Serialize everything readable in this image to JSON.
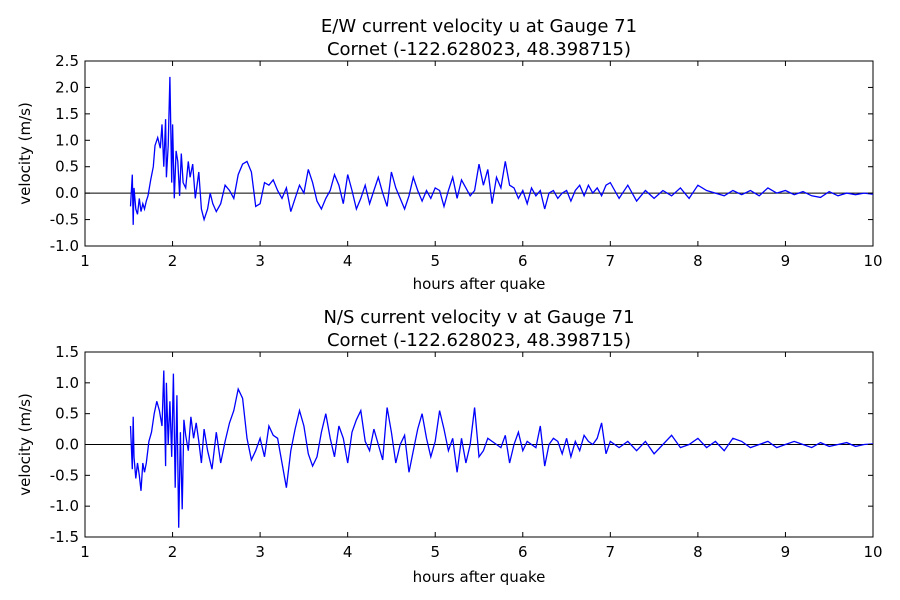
{
  "chart_data": [
    {
      "type": "line",
      "title": "E/W current velocity u at Gauge 71",
      "subtitle": "Cornet  (-122.628023, 48.398715)",
      "xlabel": "hours after quake",
      "ylabel": "velocity (m/s)",
      "xlim": [
        1,
        10
      ],
      "ylim": [
        -1.0,
        2.5
      ],
      "xticks": [
        "1",
        "2",
        "3",
        "4",
        "5",
        "6",
        "7",
        "8",
        "9",
        "10"
      ],
      "yticks": [
        "2.5",
        "2.0",
        "1.5",
        "1.0",
        "0.5",
        "0.0",
        "-0.5",
        "-1.0"
      ],
      "grid": false,
      "zero_line": true,
      "series_color": "#0000ff",
      "zero_line_color": "#000000",
      "series": [
        {
          "x": [
            1.52,
            1.54,
            1.55,
            1.56,
            1.58,
            1.6,
            1.62,
            1.64,
            1.66,
            1.68,
            1.7,
            1.72,
            1.75,
            1.78,
            1.8,
            1.83,
            1.86,
            1.88,
            1.9,
            1.92,
            1.93,
            1.95,
            1.97,
            1.99,
            2.0,
            2.02,
            2.04,
            2.06,
            2.08,
            2.1,
            2.12,
            2.15,
            2.18,
            2.2,
            2.23,
            2.26,
            2.3,
            2.33,
            2.36,
            2.4,
            2.43,
            2.46,
            2.5,
            2.55,
            2.6,
            2.65,
            2.7,
            2.75,
            2.8,
            2.85,
            2.9,
            2.95,
            3.0,
            3.05,
            3.1,
            3.15,
            3.2,
            3.25,
            3.3,
            3.35,
            3.4,
            3.45,
            3.5,
            3.55,
            3.6,
            3.65,
            3.7,
            3.75,
            3.8,
            3.85,
            3.9,
            3.95,
            4.0,
            4.05,
            4.1,
            4.15,
            4.2,
            4.25,
            4.3,
            4.35,
            4.4,
            4.45,
            4.5,
            4.55,
            4.6,
            4.65,
            4.7,
            4.75,
            4.8,
            4.85,
            4.9,
            4.95,
            5.0,
            5.05,
            5.1,
            5.15,
            5.2,
            5.25,
            5.3,
            5.35,
            5.4,
            5.45,
            5.5,
            5.55,
            5.6,
            5.65,
            5.7,
            5.75,
            5.8,
            5.85,
            5.9,
            5.95,
            6.0,
            6.05,
            6.1,
            6.15,
            6.2,
            6.25,
            6.3,
            6.35,
            6.4,
            6.45,
            6.5,
            6.55,
            6.6,
            6.65,
            6.7,
            6.75,
            6.8,
            6.85,
            6.9,
            6.95,
            7.0,
            7.1,
            7.2,
            7.3,
            7.4,
            7.5,
            7.6,
            7.7,
            7.8,
            7.9,
            8.0,
            8.1,
            8.2,
            8.3,
            8.4,
            8.5,
            8.6,
            8.7,
            8.8,
            8.9,
            9.0,
            9.1,
            9.2,
            9.3,
            9.4,
            9.5,
            9.6,
            9.7,
            9.8,
            9.9,
            10.0
          ],
          "y": [
            -0.25,
            0.35,
            -0.6,
            0.1,
            -0.3,
            -0.4,
            -0.1,
            -0.35,
            -0.2,
            -0.3,
            -0.15,
            -0.05,
            0.25,
            0.5,
            0.9,
            1.05,
            0.85,
            1.3,
            0.5,
            1.4,
            0.3,
            0.9,
            2.2,
            0.2,
            1.3,
            -0.1,
            0.8,
            0.6,
            -0.05,
            0.75,
            0.2,
            0.1,
            0.6,
            0.3,
            0.55,
            -0.1,
            0.4,
            -0.3,
            -0.5,
            -0.3,
            0.0,
            -0.2,
            -0.35,
            -0.2,
            0.15,
            0.05,
            -0.1,
            0.35,
            0.55,
            0.6,
            0.4,
            -0.25,
            -0.2,
            0.2,
            0.15,
            0.25,
            0.05,
            -0.1,
            0.1,
            -0.35,
            -0.1,
            0.15,
            0.0,
            0.45,
            0.2,
            -0.15,
            -0.3,
            -0.1,
            0.05,
            0.35,
            0.15,
            -0.2,
            0.35,
            0.05,
            -0.3,
            -0.1,
            0.15,
            -0.2,
            0.05,
            0.3,
            0.0,
            -0.25,
            0.4,
            0.1,
            -0.1,
            -0.3,
            -0.05,
            0.3,
            0.05,
            -0.15,
            0.05,
            -0.1,
            0.1,
            0.05,
            -0.25,
            0.05,
            0.3,
            -0.1,
            0.25,
            0.1,
            -0.05,
            0.05,
            0.55,
            0.15,
            0.45,
            -0.2,
            0.3,
            0.1,
            0.6,
            0.15,
            0.1,
            -0.1,
            0.05,
            -0.2,
            0.1,
            -0.05,
            0.05,
            -0.3,
            0.0,
            0.05,
            -0.1,
            0.0,
            0.05,
            -0.15,
            0.05,
            0.15,
            -0.05,
            0.15,
            0.0,
            0.1,
            -0.05,
            0.15,
            0.2,
            -0.1,
            0.15,
            -0.15,
            0.05,
            -0.1,
            0.05,
            -0.05,
            0.1,
            -0.1,
            0.15,
            0.05,
            0.0,
            -0.05,
            0.05,
            -0.03,
            0.05,
            -0.05,
            0.1,
            0.0,
            0.05,
            -0.03,
            0.03,
            -0.05,
            -0.08,
            0.03,
            -0.05,
            0.0,
            -0.03,
            0.0,
            -0.02
          ]
        }
      ]
    },
    {
      "type": "line",
      "title": "N/S current velocity v at Gauge 71",
      "subtitle": "Cornet  (-122.628023, 48.398715)",
      "xlabel": "hours after quake",
      "ylabel": "velocity (m/s)",
      "xlim": [
        1,
        10
      ],
      "ylim": [
        -1.5,
        1.5
      ],
      "xticks": [
        "1",
        "2",
        "3",
        "4",
        "5",
        "6",
        "7",
        "8",
        "9",
        "10"
      ],
      "yticks": [
        "1.5",
        "1.0",
        "0.5",
        "0.0",
        "-0.5",
        "-1.0",
        "-1.5"
      ],
      "grid": false,
      "zero_line": true,
      "series_color": "#0000ff",
      "zero_line_color": "#000000",
      "series": [
        {
          "x": [
            1.52,
            1.54,
            1.55,
            1.56,
            1.58,
            1.6,
            1.62,
            1.64,
            1.66,
            1.68,
            1.7,
            1.73,
            1.76,
            1.79,
            1.82,
            1.85,
            1.88,
            1.9,
            1.92,
            1.93,
            1.95,
            1.97,
            1.99,
            2.01,
            2.03,
            2.05,
            2.07,
            2.09,
            2.11,
            2.13,
            2.15,
            2.18,
            2.21,
            2.24,
            2.27,
            2.3,
            2.33,
            2.36,
            2.4,
            2.45,
            2.5,
            2.55,
            2.6,
            2.65,
            2.7,
            2.75,
            2.8,
            2.85,
            2.9,
            2.95,
            3.0,
            3.05,
            3.1,
            3.15,
            3.2,
            3.25,
            3.3,
            3.35,
            3.4,
            3.45,
            3.5,
            3.55,
            3.6,
            3.65,
            3.7,
            3.75,
            3.8,
            3.85,
            3.9,
            3.95,
            4.0,
            4.05,
            4.1,
            4.15,
            4.2,
            4.25,
            4.3,
            4.35,
            4.4,
            4.45,
            4.5,
            4.55,
            4.6,
            4.65,
            4.7,
            4.75,
            4.8,
            4.85,
            4.9,
            4.95,
            5.0,
            5.05,
            5.1,
            5.15,
            5.2,
            5.25,
            5.3,
            5.35,
            5.4,
            5.45,
            5.5,
            5.55,
            5.6,
            5.65,
            5.7,
            5.75,
            5.8,
            5.85,
            5.9,
            5.95,
            6.0,
            6.05,
            6.1,
            6.15,
            6.2,
            6.25,
            6.3,
            6.35,
            6.4,
            6.45,
            6.5,
            6.55,
            6.6,
            6.65,
            6.7,
            6.75,
            6.8,
            6.85,
            6.9,
            6.95,
            7.0,
            7.1,
            7.2,
            7.3,
            7.4,
            7.5,
            7.6,
            7.7,
            7.8,
            7.9,
            8.0,
            8.1,
            8.2,
            8.3,
            8.4,
            8.5,
            8.6,
            8.7,
            8.8,
            8.9,
            9.0,
            9.1,
            9.2,
            9.3,
            9.4,
            9.5,
            9.6,
            9.7,
            9.8,
            9.9,
            10.0
          ],
          "y": [
            0.3,
            -0.4,
            0.45,
            -0.2,
            -0.55,
            -0.3,
            -0.5,
            -0.75,
            -0.3,
            -0.45,
            -0.3,
            0.05,
            0.2,
            0.5,
            0.7,
            0.55,
            0.3,
            1.2,
            -0.35,
            1.0,
            0.0,
            0.7,
            -0.2,
            1.15,
            -0.7,
            0.8,
            -1.35,
            0.2,
            -1.05,
            0.4,
            0.15,
            -0.1,
            0.45,
            0.1,
            0.35,
            0.05,
            -0.3,
            0.25,
            -0.1,
            -0.4,
            0.2,
            -0.3,
            0.05,
            0.35,
            0.55,
            0.9,
            0.75,
            0.1,
            -0.25,
            -0.1,
            0.1,
            -0.2,
            0.3,
            0.15,
            0.1,
            -0.3,
            -0.7,
            -0.1,
            0.25,
            0.55,
            0.3,
            -0.15,
            -0.35,
            -0.2,
            0.2,
            0.5,
            0.1,
            -0.2,
            0.3,
            0.1,
            -0.3,
            0.2,
            0.4,
            0.55,
            0.05,
            -0.1,
            0.25,
            0.0,
            -0.25,
            0.6,
            0.2,
            -0.3,
            0.0,
            0.15,
            -0.45,
            -0.1,
            0.25,
            0.5,
            0.1,
            -0.2,
            0.05,
            0.55,
            0.25,
            -0.1,
            0.1,
            -0.45,
            0.1,
            -0.3,
            0.0,
            0.6,
            -0.2,
            -0.1,
            0.1,
            0.05,
            0.0,
            -0.05,
            0.15,
            -0.3,
            0.0,
            0.2,
            -0.1,
            0.05,
            0.0,
            -0.05,
            0.3,
            -0.35,
            0.0,
            0.1,
            0.05,
            -0.15,
            0.1,
            -0.2,
            0.05,
            -0.1,
            0.15,
            0.05,
            0.0,
            0.1,
            0.35,
            -0.15,
            0.05,
            -0.05,
            0.05,
            -0.1,
            0.05,
            -0.15,
            0.0,
            0.15,
            -0.05,
            0.0,
            0.1,
            -0.05,
            0.05,
            -0.1,
            0.1,
            0.05,
            -0.05,
            0.0,
            0.05,
            -0.05,
            0.0,
            0.05,
            0.0,
            -0.05,
            0.03,
            -0.03,
            0.0,
            0.03,
            -0.03,
            0.0,
            0.01
          ]
        }
      ]
    }
  ]
}
